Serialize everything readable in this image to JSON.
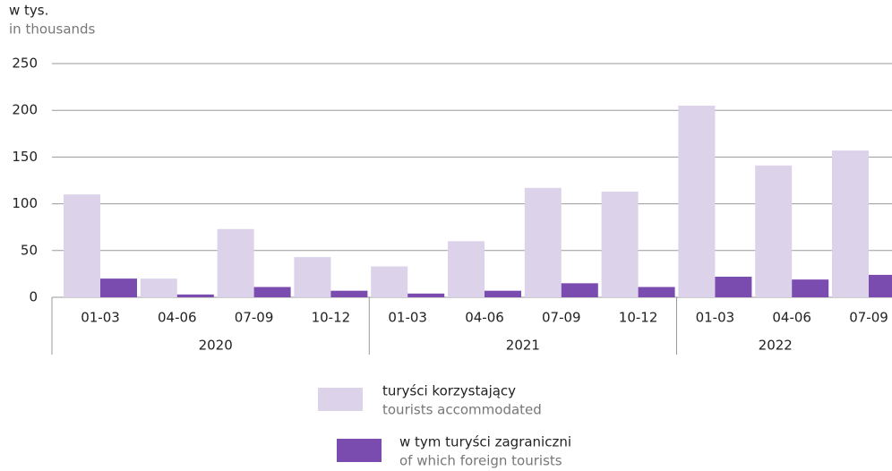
{
  "chart_data": {
    "type": "bar",
    "unit_label": "w tys.",
    "unit_label_en": "in thousands",
    "groups": [
      {
        "label": "2020",
        "categories": [
          "01-03",
          "04-06",
          "07-09",
          "10-12"
        ]
      },
      {
        "label": "2021",
        "categories": [
          "01-03",
          "04-06",
          "07-09",
          "10-12"
        ]
      },
      {
        "label": "2022",
        "categories": [
          "01-03",
          "04-06",
          "07-09"
        ]
      }
    ],
    "series": [
      {
        "name": "turyści korzystający",
        "name_en": "tourists accommodated",
        "color": "#dcd3ea",
        "values": [
          110,
          20,
          73,
          43,
          33,
          60,
          117,
          113,
          205,
          141,
          157
        ]
      },
      {
        "name": "w tym turyści zagraniczni",
        "name_en": "of which foreign tourists",
        "color": "#7a4caf",
        "values": [
          20,
          3,
          11,
          7,
          4,
          7,
          15,
          11,
          22,
          19,
          24
        ]
      }
    ],
    "ylim": [
      0,
      250
    ],
    "yticks": [
      0,
      50,
      100,
      150,
      200,
      250
    ],
    "grid": true,
    "legend": "bottom"
  }
}
